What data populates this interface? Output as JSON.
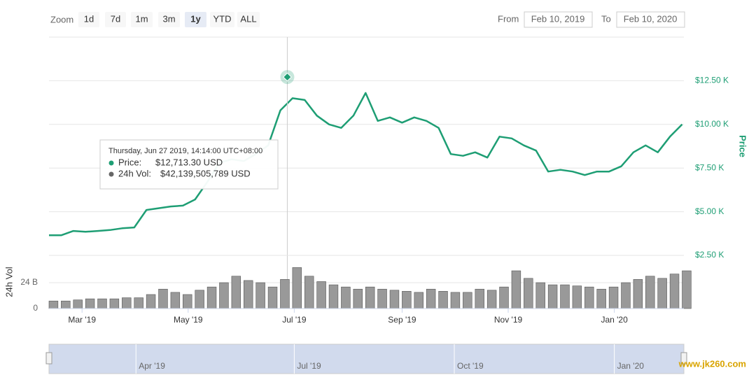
{
  "range_selector": {
    "zoom_label": "Zoom",
    "buttons": [
      "1d",
      "7d",
      "1m",
      "3m",
      "1y",
      "YTD",
      "ALL"
    ],
    "selected": 4,
    "from_label": "From",
    "from": "Feb 10, 2019",
    "to_label": "To",
    "to": "Feb 10, 2020"
  },
  "chart_data": [
    {
      "type": "line",
      "y_axis_label": "Price",
      "color": "#1e9e74",
      "grid": true,
      "xlim": [
        "2019-02-10",
        "2020-02-10"
      ],
      "x": [
        "2019-02-10",
        "2019-02-17",
        "2019-02-24",
        "2019-03-03",
        "2019-03-10",
        "2019-03-17",
        "2019-03-24",
        "2019-03-31",
        "2019-04-07",
        "2019-04-14",
        "2019-04-21",
        "2019-04-28",
        "2019-05-05",
        "2019-05-12",
        "2019-05-19",
        "2019-05-26",
        "2019-06-02",
        "2019-06-09",
        "2019-06-16",
        "2019-06-23",
        "2019-06-30",
        "2019-07-07",
        "2019-07-14",
        "2019-07-21",
        "2019-07-28",
        "2019-08-04",
        "2019-08-11",
        "2019-08-18",
        "2019-08-25",
        "2019-09-01",
        "2019-09-08",
        "2019-09-15",
        "2019-09-22",
        "2019-09-29",
        "2019-10-06",
        "2019-10-13",
        "2019-10-20",
        "2019-10-27",
        "2019-11-03",
        "2019-11-10",
        "2019-11-17",
        "2019-11-24",
        "2019-12-01",
        "2019-12-08",
        "2019-12-15",
        "2019-12-22",
        "2019-12-29",
        "2020-01-05",
        "2020-01-12",
        "2020-01-19",
        "2020-01-26",
        "2020-02-02",
        "2020-02-09"
      ],
      "series": [
        {
          "name": "Price",
          "color": "#1e9e74",
          "values": [
            3650,
            3650,
            3900,
            3850,
            3900,
            3950,
            4050,
            4100,
            5100,
            5200,
            5300,
            5350,
            5700,
            6700,
            7800,
            8000,
            7900,
            8300,
            8800,
            10800,
            11500,
            11400,
            10500,
            10000,
            9800,
            10500,
            11800,
            10200,
            10400,
            10100,
            10400,
            10200,
            9800,
            8300,
            8200,
            8400,
            8100,
            9300,
            9200,
            8800,
            8500,
            7300,
            7400,
            7300,
            7100,
            7300,
            7300,
            7600,
            8400,
            8800,
            8400,
            9300,
            10000
          ]
        }
      ],
      "ylim": [
        2500,
        15000
      ],
      "yticks": [
        {
          "value": 2500,
          "label": "$2.50 K"
        },
        {
          "value": 5000,
          "label": "$5.00 K"
        },
        {
          "value": 7500,
          "label": "$7.50 K"
        },
        {
          "value": 10000,
          "label": "$10.00 K"
        },
        {
          "value": 12500,
          "label": "$12.50 K"
        }
      ]
    },
    {
      "type": "bar",
      "y_axis_label": "24h Vol",
      "color": "#999999",
      "xlim": [
        "2019-02-10",
        "2020-02-10"
      ],
      "x": [
        "2019-02-10",
        "2019-02-17",
        "2019-02-24",
        "2019-03-03",
        "2019-03-10",
        "2019-03-17",
        "2019-03-24",
        "2019-03-31",
        "2019-04-07",
        "2019-04-14",
        "2019-04-21",
        "2019-04-28",
        "2019-05-05",
        "2019-05-12",
        "2019-05-19",
        "2019-05-26",
        "2019-06-02",
        "2019-06-09",
        "2019-06-16",
        "2019-06-23",
        "2019-06-30",
        "2019-07-07",
        "2019-07-14",
        "2019-07-21",
        "2019-07-28",
        "2019-08-04",
        "2019-08-11",
        "2019-08-18",
        "2019-08-25",
        "2019-09-01",
        "2019-09-08",
        "2019-09-15",
        "2019-09-22",
        "2019-09-29",
        "2019-10-06",
        "2019-10-13",
        "2019-10-20",
        "2019-10-27",
        "2019-11-03",
        "2019-11-10",
        "2019-11-17",
        "2019-11-24",
        "2019-12-01",
        "2019-12-08",
        "2019-12-15",
        "2019-12-22",
        "2019-12-29",
        "2020-01-05",
        "2020-01-12",
        "2020-01-19",
        "2020-01-26",
        "2020-02-02",
        "2020-02-09"
      ],
      "values": [
        7,
        7,
        8,
        9,
        9,
        9,
        10,
        10,
        13,
        18,
        15,
        13,
        17,
        20,
        24,
        30,
        26,
        24,
        20,
        27,
        38,
        30,
        25,
        22,
        20,
        18,
        20,
        18,
        17,
        16,
        15,
        18,
        16,
        15,
        15,
        18,
        17,
        20,
        35,
        28,
        24,
        22,
        22,
        21,
        20,
        18,
        20,
        24,
        27,
        30,
        28,
        32,
        35
      ],
      "ylim": [
        0,
        48
      ],
      "yticks": [
        0,
        {
          "value": 24,
          "label": "24 B"
        }
      ],
      "xticks": [
        {
          "value": "2019-03-01",
          "label": "Mar '19"
        },
        {
          "value": "2019-05-01",
          "label": "May '19"
        },
        {
          "value": "2019-07-01",
          "label": "Jul '19"
        },
        {
          "value": "2019-09-01",
          "label": "Sep '19"
        },
        {
          "value": "2019-11-01",
          "label": "Nov '19"
        },
        {
          "value": "2020-01-01",
          "label": "Jan '20"
        }
      ]
    }
  ],
  "navigator": {
    "xticks": [
      {
        "value": "2019-04-01",
        "label": "Apr '19"
      },
      {
        "value": "2019-07-01",
        "label": "Jul '19"
      },
      {
        "value": "2019-10-01",
        "label": "Oct '19"
      },
      {
        "value": "2020-01-01",
        "label": "Jan '20"
      }
    ]
  },
  "tooltip": {
    "date_text": "Thursday, Jun 27 2019, 14:14:00 UTC+08:00",
    "x": "2019-06-27",
    "price_name": "Price:",
    "price": 12713.3,
    "price_label": "$12,713.30 USD",
    "volume_name": "24h Vol:",
    "volume": 42.139505789,
    "volume_label": "$42,139,505,789 USD"
  },
  "watermark": "www.jk260.com"
}
